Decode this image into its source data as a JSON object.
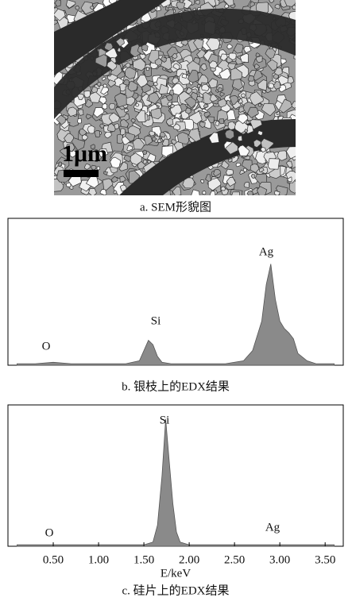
{
  "sem": {
    "scale_bar": "1μm",
    "caption": "a. SEM形貌图"
  },
  "chart_data": [
    {
      "type": "area",
      "caption": "b.  银枝上的EDX结果",
      "annotations": [
        "O",
        "Si",
        "Ag"
      ],
      "xlim": [
        0,
        3.7
      ],
      "ylim": [
        0,
        100
      ],
      "color": "#8a8a8a",
      "x": [
        0.1,
        0.3,
        0.5,
        0.7,
        0.9,
        1.1,
        1.3,
        1.45,
        1.5,
        1.55,
        1.6,
        1.65,
        1.7,
        1.8,
        2.0,
        2.2,
        2.4,
        2.6,
        2.7,
        2.8,
        2.85,
        2.9,
        2.95,
        3.0,
        3.05,
        3.1,
        3.15,
        3.2,
        3.3,
        3.4,
        3.6
      ],
      "values": [
        1,
        1,
        2,
        1,
        1,
        1,
        1,
        3,
        10,
        17,
        14,
        6,
        2,
        1,
        1,
        1,
        1,
        3,
        10,
        30,
        55,
        69,
        45,
        30,
        25,
        22,
        18,
        8,
        3,
        1,
        1
      ]
    },
    {
      "type": "area",
      "caption": "c.  硅片上的EDX结果",
      "xlabel": "E/keV",
      "annotations": [
        "Si",
        "O",
        "Ag"
      ],
      "xlim": [
        0,
        3.7
      ],
      "ylim": [
        0,
        100
      ],
      "color": "#8a8a8a",
      "xticks": [
        {
          "value": 0.5,
          "label": "0.50"
        },
        {
          "value": 1,
          "label": "1.00"
        },
        {
          "value": 1.5,
          "label": "1.50"
        },
        {
          "value": 2,
          "label": "2.00"
        },
        {
          "value": 2.5,
          "label": "2.50"
        },
        {
          "value": 3,
          "label": "3.00"
        },
        {
          "value": 3.5,
          "label": "3.50"
        }
      ],
      "x": [
        0.1,
        0.3,
        0.5,
        0.7,
        0.9,
        1.1,
        1.3,
        1.5,
        1.6,
        1.65,
        1.7,
        1.74,
        1.78,
        1.82,
        1.86,
        1.9,
        2.0,
        2.2,
        2.6,
        3.0,
        3.2,
        3.6
      ],
      "values": [
        1,
        1,
        1,
        1,
        1,
        1,
        1,
        1,
        3,
        15,
        50,
        90,
        60,
        30,
        10,
        3,
        1,
        1,
        1,
        1,
        1,
        1
      ]
    }
  ]
}
